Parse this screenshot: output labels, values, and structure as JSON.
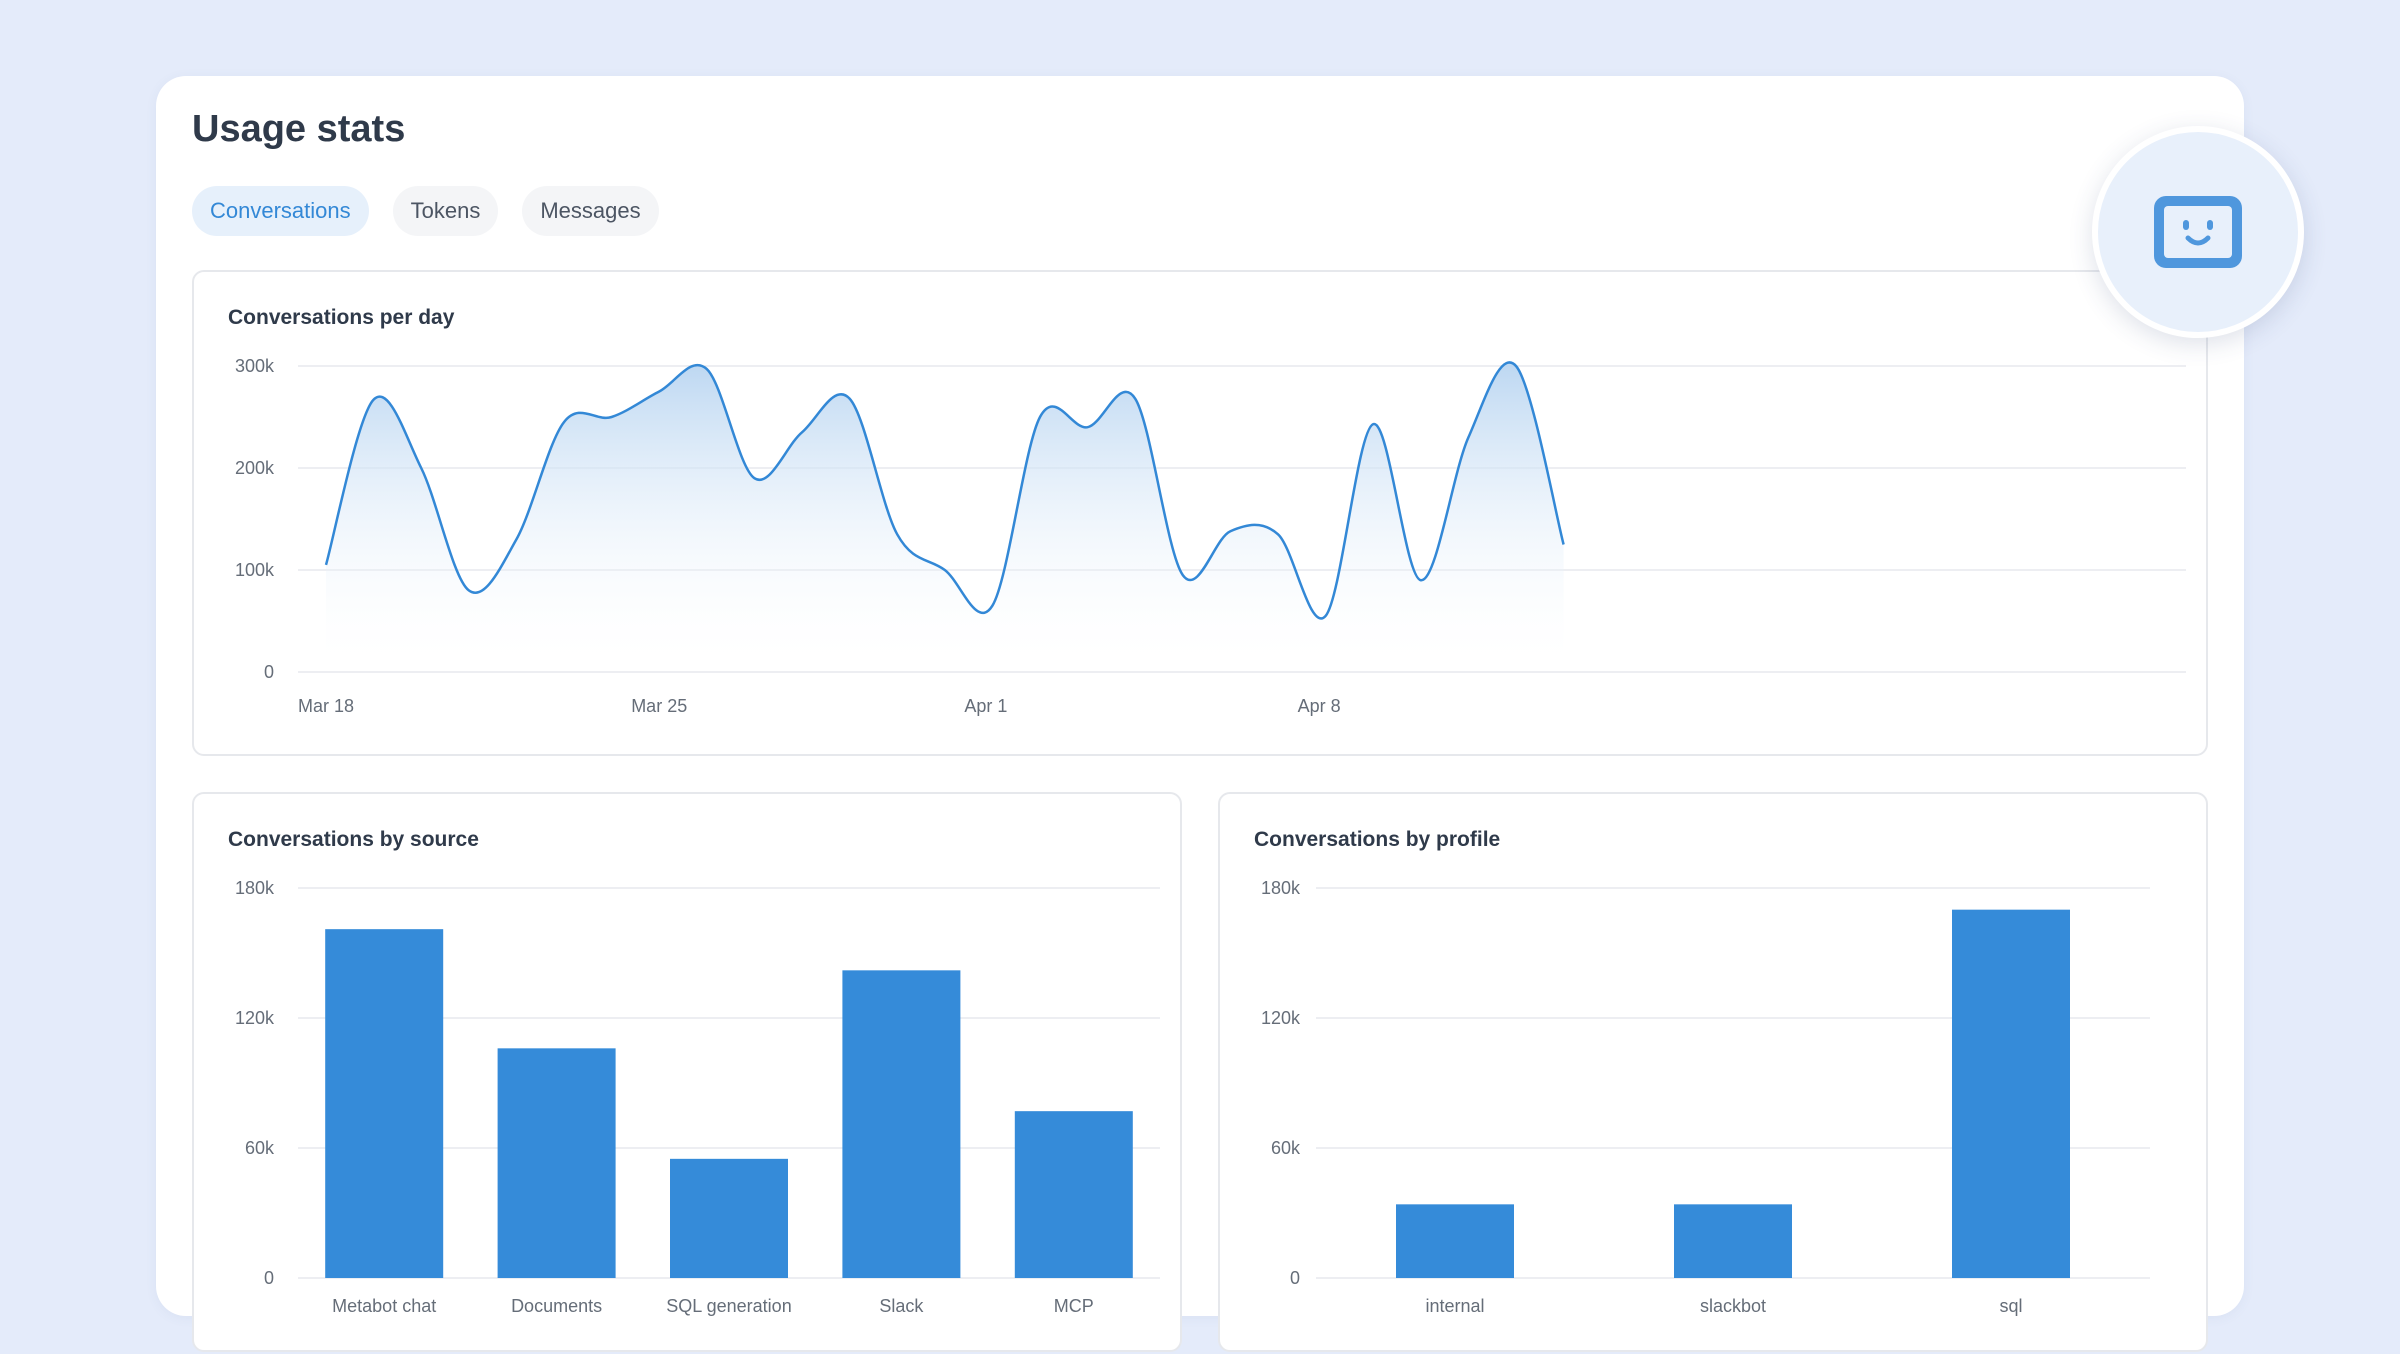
{
  "page": {
    "title": "Usage stats"
  },
  "tabs": [
    {
      "label": "Conversations",
      "active": true
    },
    {
      "label": "Tokens",
      "active": false
    },
    {
      "label": "Messages",
      "active": false
    }
  ],
  "colors": {
    "accent": "#3388d6",
    "background": "#e4ebfa",
    "bar": "#358bd9"
  },
  "avatar": {
    "icon": "smiley-robot-icon"
  },
  "chart_data": [
    {
      "type": "area",
      "title": "Conversations per day",
      "xlabel": "",
      "ylabel": "",
      "ylim": [
        0,
        300000
      ],
      "yticks": [
        "0",
        "100k",
        "200k",
        "300k"
      ],
      "xticks": [
        {
          "label": "Mar 18",
          "day": 0
        },
        {
          "label": "Mar 25",
          "day": 7
        },
        {
          "label": "Apr 1",
          "day": 14
        },
        {
          "label": "Apr 8",
          "day": 21
        }
      ],
      "x": [
        "Mar 18",
        "Mar 19",
        "Mar 20",
        "Mar 21",
        "Mar 22",
        "Mar 23",
        "Mar 24",
        "Mar 25",
        "Mar 26",
        "Mar 27",
        "Mar 28",
        "Mar 29",
        "Mar 30",
        "Mar 31",
        "Apr 1",
        "Apr 2",
        "Apr 3",
        "Apr 4",
        "Apr 5",
        "Apr 6",
        "Apr 7",
        "Apr 8",
        "Apr 9",
        "Apr 10",
        "Apr 11",
        "Apr 12",
        "Apr 13"
      ],
      "values": [
        105000,
        267000,
        200000,
        80000,
        130000,
        245000,
        250000,
        275000,
        297000,
        190000,
        235000,
        268000,
        135000,
        100000,
        65000,
        250000,
        240000,
        268000,
        95000,
        138000,
        135000,
        55000,
        243000,
        90000,
        230000,
        300000,
        125000
      ],
      "grid": true
    },
    {
      "type": "bar",
      "title": "Conversations by source",
      "ylim": [
        0,
        180000
      ],
      "yticks": [
        "0",
        "60k",
        "120k",
        "180k"
      ],
      "categories": [
        "Metabot chat",
        "Documents",
        "SQL generation",
        "Slack",
        "MCP"
      ],
      "values": [
        161000,
        106000,
        55000,
        142000,
        77000
      ],
      "grid": true
    },
    {
      "type": "bar",
      "title": "Conversations by profile",
      "ylim": [
        0,
        180000
      ],
      "yticks": [
        "0",
        "60k",
        "120k",
        "180k"
      ],
      "categories": [
        "internal",
        "slackbot",
        "sql"
      ],
      "values": [
        34000,
        34000,
        170000
      ],
      "grid": true
    }
  ]
}
